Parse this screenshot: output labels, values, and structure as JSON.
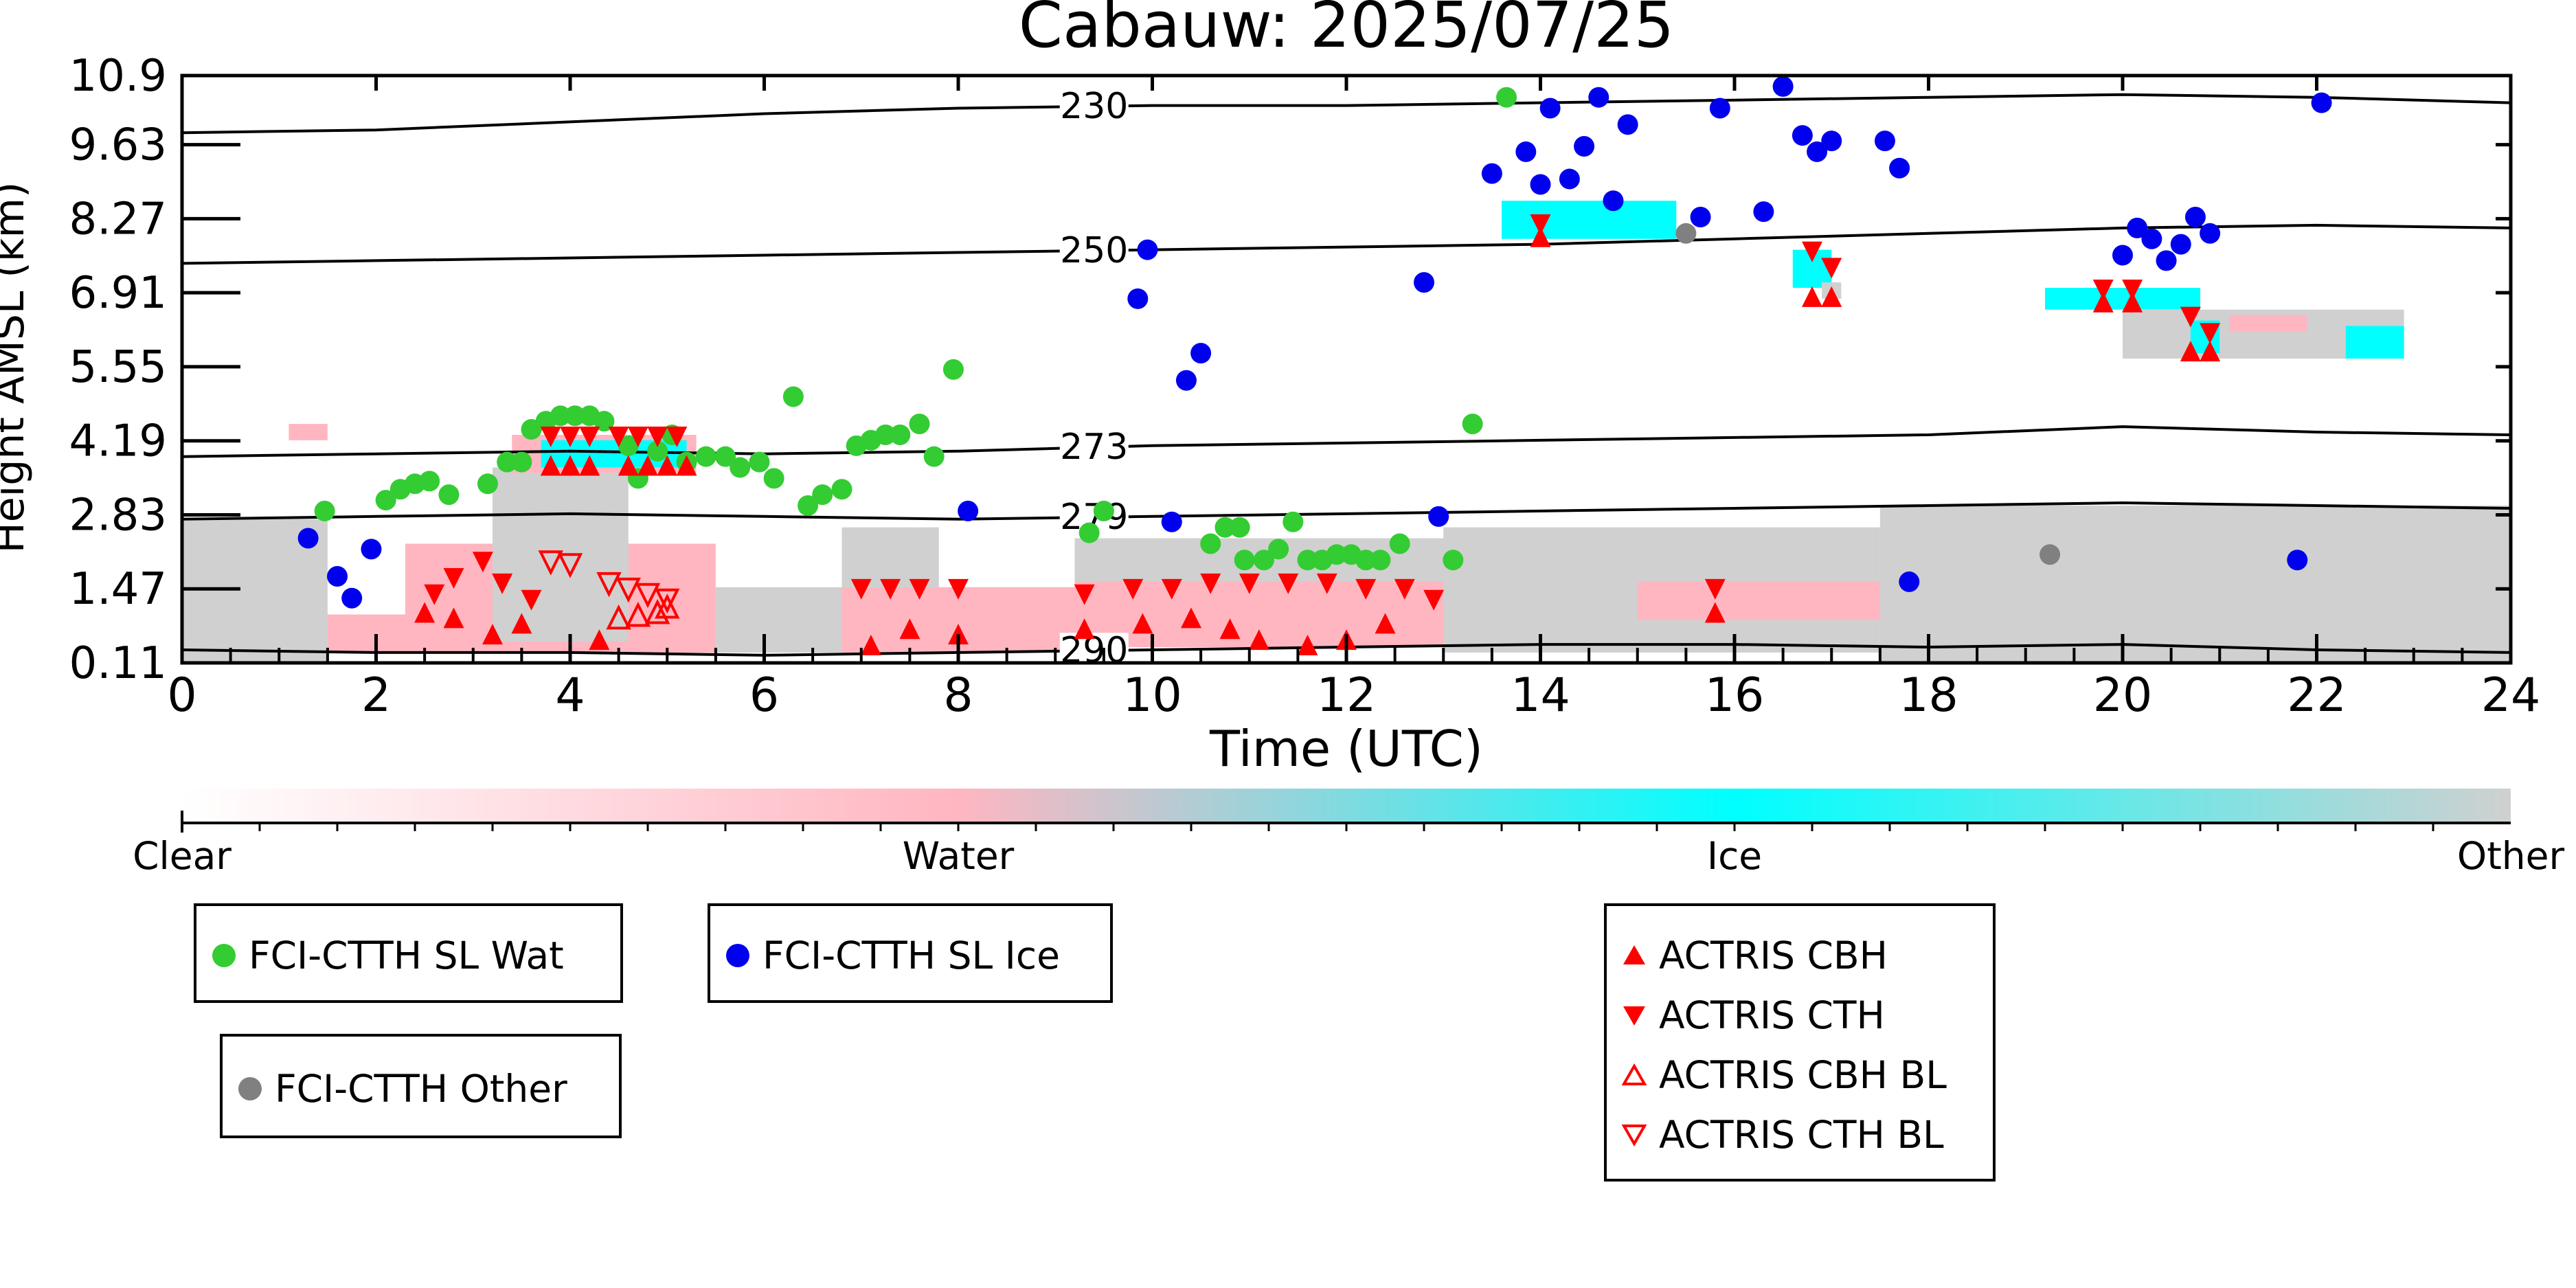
{
  "chart_data": {
    "type": "scatter",
    "title": "Cabauw: 2025/07/25",
    "xlabel": "Time (UTC)",
    "ylabel": "Height AMSL (km)",
    "xlim": [
      0,
      24
    ],
    "ylim": [
      0.11,
      10.9
    ],
    "xticks": [
      "0",
      "2",
      "4",
      "6",
      "8",
      "10",
      "12",
      "14",
      "16",
      "18",
      "20",
      "22",
      "24"
    ],
    "yticks": [
      "0.11",
      "1.47",
      "2.83",
      "4.19",
      "5.55",
      "6.91",
      "8.27",
      "9.63",
      "10.9"
    ],
    "ytick_values": [
      0.11,
      1.47,
      2.83,
      4.19,
      5.55,
      6.91,
      8.27,
      9.63,
      10.9
    ],
    "contours": [
      {
        "label": "230",
        "label_x": 9.4,
        "points": [
          [
            0,
            9.85
          ],
          [
            2,
            9.9
          ],
          [
            4,
            10.05
          ],
          [
            6,
            10.2
          ],
          [
            8,
            10.3
          ],
          [
            10,
            10.35
          ],
          [
            12,
            10.35
          ],
          [
            14,
            10.4
          ],
          [
            16,
            10.45
          ],
          [
            18,
            10.5
          ],
          [
            20,
            10.55
          ],
          [
            22,
            10.5
          ],
          [
            24,
            10.4
          ]
        ]
      },
      {
        "label": "250",
        "label_x": 9.4,
        "points": [
          [
            0,
            7.45
          ],
          [
            2,
            7.5
          ],
          [
            4,
            7.55
          ],
          [
            6,
            7.6
          ],
          [
            8,
            7.65
          ],
          [
            10,
            7.7
          ],
          [
            12,
            7.75
          ],
          [
            14,
            7.8
          ],
          [
            16,
            7.9
          ],
          [
            18,
            8.0
          ],
          [
            20,
            8.1
          ],
          [
            22,
            8.15
          ],
          [
            24,
            8.1
          ]
        ]
      },
      {
        "label": "273",
        "label_x": 9.4,
        "points": [
          [
            0,
            3.9
          ],
          [
            2,
            3.95
          ],
          [
            4,
            4.0
          ],
          [
            6,
            3.95
          ],
          [
            8,
            4.0
          ],
          [
            10,
            4.1
          ],
          [
            12,
            4.15
          ],
          [
            14,
            4.2
          ],
          [
            16,
            4.25
          ],
          [
            18,
            4.3
          ],
          [
            20,
            4.45
          ],
          [
            22,
            4.35
          ],
          [
            24,
            4.3
          ]
        ]
      },
      {
        "label": "279",
        "label_x": 9.4,
        "points": [
          [
            0,
            2.75
          ],
          [
            2,
            2.8
          ],
          [
            4,
            2.85
          ],
          [
            6,
            2.8
          ],
          [
            8,
            2.75
          ],
          [
            10,
            2.8
          ],
          [
            12,
            2.85
          ],
          [
            14,
            2.9
          ],
          [
            16,
            2.95
          ],
          [
            18,
            3.0
          ],
          [
            20,
            3.05
          ],
          [
            22,
            3.0
          ],
          [
            24,
            2.95
          ]
        ]
      },
      {
        "label": "290",
        "label_x": 9.4,
        "points": [
          [
            0,
            0.35
          ],
          [
            2,
            0.3
          ],
          [
            4,
            0.3
          ],
          [
            6,
            0.25
          ],
          [
            8,
            0.3
          ],
          [
            10,
            0.35
          ],
          [
            12,
            0.4
          ],
          [
            14,
            0.45
          ],
          [
            16,
            0.45
          ],
          [
            18,
            0.4
          ],
          [
            20,
            0.45
          ],
          [
            22,
            0.35
          ],
          [
            24,
            0.3
          ]
        ]
      }
    ],
    "classification": {
      "colors": {
        "Water": "#ffb6c1",
        "Ice": "#00ffff",
        "Other": "#d0d0d0"
      },
      "regions": [
        {
          "class": "Other",
          "x0": 0,
          "x1": 1.5,
          "y0": 0.11,
          "y1": 2.75
        },
        {
          "class": "Water",
          "x0": 1.5,
          "x1": 2.5,
          "y0": 0.3,
          "y1": 1.0
        },
        {
          "class": "Water",
          "x0": 2.3,
          "x1": 5.5,
          "y0": 0.3,
          "y1": 2.3
        },
        {
          "class": "Other",
          "x0": 3.2,
          "x1": 4.6,
          "y0": 0.5,
          "y1": 3.7
        },
        {
          "class": "Other",
          "x0": 5.5,
          "x1": 9.2,
          "y0": 0.3,
          "y1": 1.5
        },
        {
          "class": "Water",
          "x0": 6.8,
          "x1": 9.2,
          "y0": 0.3,
          "y1": 1.5
        },
        {
          "class": "Other",
          "x0": 6.8,
          "x1": 7.8,
          "y0": 1.5,
          "y1": 2.6
        },
        {
          "class": "Other",
          "x0": 9.2,
          "x1": 14.0,
          "y0": 0.5,
          "y1": 2.4
        },
        {
          "class": "Water",
          "x0": 9.2,
          "x1": 13.0,
          "y0": 0.4,
          "y1": 1.6
        },
        {
          "class": "Other",
          "x0": 13.0,
          "x1": 17.5,
          "y0": 0.3,
          "y1": 2.6
        },
        {
          "class": "Water",
          "x0": 15.0,
          "x1": 17.5,
          "y0": 0.9,
          "y1": 1.6
        },
        {
          "class": "Other",
          "x0": 17.5,
          "x1": 24,
          "y0": 0.11,
          "y1": 3.0
        },
        {
          "class": "Water",
          "x0": 3.4,
          "x1": 5.3,
          "y0": 3.6,
          "y1": 4.3
        },
        {
          "class": "Ice",
          "x0": 3.7,
          "x1": 5.2,
          "y0": 3.7,
          "y1": 4.2
        },
        {
          "class": "Water",
          "x0": 1.1,
          "x1": 1.5,
          "y0": 4.2,
          "y1": 4.5
        },
        {
          "class": "Ice",
          "x0": 13.6,
          "x1": 15.4,
          "y0": 7.9,
          "y1": 8.6
        },
        {
          "class": "Ice",
          "x0": 16.6,
          "x1": 17.0,
          "y0": 7.0,
          "y1": 7.7
        },
        {
          "class": "Other",
          "x0": 16.9,
          "x1": 17.1,
          "y0": 6.8,
          "y1": 7.1
        },
        {
          "class": "Ice",
          "x0": 19.2,
          "x1": 20.8,
          "y0": 6.6,
          "y1": 7.0
        },
        {
          "class": "Other",
          "x0": 20.0,
          "x1": 22.9,
          "y0": 5.7,
          "y1": 6.6
        },
        {
          "class": "Water",
          "x0": 21.1,
          "x1": 21.9,
          "y0": 6.2,
          "y1": 6.5
        },
        {
          "class": "Ice",
          "x0": 20.7,
          "x1": 21.0,
          "y0": 5.8,
          "y1": 6.4
        },
        {
          "class": "Ice",
          "x0": 22.3,
          "x1": 22.9,
          "y0": 5.7,
          "y1": 6.3
        }
      ]
    },
    "colorbar": {
      "labels": [
        "Clear",
        "Water",
        "Ice",
        "Other"
      ],
      "colors": [
        "#ffffff",
        "#ffb6c1",
        "#00ffff",
        "#d0d0d0"
      ]
    },
    "series": [
      {
        "name": "FCI-CTTH SL Wat",
        "marker": "circle",
        "color": "#33cc33",
        "points": [
          [
            1.47,
            2.9
          ],
          [
            2.1,
            3.1
          ],
          [
            2.25,
            3.3
          ],
          [
            2.4,
            3.4
          ],
          [
            2.55,
            3.45
          ],
          [
            2.75,
            3.2
          ],
          [
            3.15,
            3.4
          ],
          [
            3.35,
            3.8
          ],
          [
            3.5,
            3.8
          ],
          [
            3.6,
            4.4
          ],
          [
            3.75,
            4.55
          ],
          [
            3.9,
            4.65
          ],
          [
            4.05,
            4.65
          ],
          [
            4.2,
            4.65
          ],
          [
            4.35,
            4.55
          ],
          [
            4.6,
            4.1
          ],
          [
            4.7,
            3.5
          ],
          [
            4.9,
            4.0
          ],
          [
            5.05,
            4.3
          ],
          [
            5.2,
            3.8
          ],
          [
            5.4,
            3.9
          ],
          [
            5.6,
            3.9
          ],
          [
            5.75,
            3.7
          ],
          [
            5.95,
            3.8
          ],
          [
            6.1,
            3.5
          ],
          [
            6.3,
            5.0
          ],
          [
            6.45,
            3.0
          ],
          [
            6.6,
            3.2
          ],
          [
            6.8,
            3.3
          ],
          [
            6.95,
            4.1
          ],
          [
            7.1,
            4.2
          ],
          [
            7.25,
            4.3
          ],
          [
            7.4,
            4.3
          ],
          [
            7.6,
            4.5
          ],
          [
            7.75,
            3.9
          ],
          [
            7.95,
            5.5
          ],
          [
            9.35,
            2.5
          ],
          [
            9.5,
            2.9
          ],
          [
            10.6,
            2.3
          ],
          [
            10.75,
            2.6
          ],
          [
            10.9,
            2.6
          ],
          [
            10.95,
            2.0
          ],
          [
            11.15,
            2.0
          ],
          [
            11.3,
            2.2
          ],
          [
            11.45,
            2.7
          ],
          [
            11.6,
            2.0
          ],
          [
            11.75,
            2.0
          ],
          [
            11.9,
            2.1
          ],
          [
            12.05,
            2.1
          ],
          [
            12.2,
            2.0
          ],
          [
            12.35,
            2.0
          ],
          [
            12.55,
            2.3
          ],
          [
            13.1,
            2.0
          ],
          [
            13.3,
            4.5
          ],
          [
            13.65,
            10.5
          ]
        ]
      },
      {
        "name": "FCI-CTTH SL Ice",
        "marker": "circle",
        "color": "#0000ee",
        "points": [
          [
            1.3,
            2.4
          ],
          [
            1.6,
            1.7
          ],
          [
            1.75,
            1.3
          ],
          [
            1.95,
            2.2
          ],
          [
            8.1,
            2.9
          ],
          [
            9.85,
            6.8
          ],
          [
            9.95,
            7.7
          ],
          [
            10.2,
            2.7
          ],
          [
            10.35,
            5.3
          ],
          [
            10.5,
            5.8
          ],
          [
            12.8,
            7.1
          ],
          [
            12.95,
            2.8
          ],
          [
            13.5,
            9.1
          ],
          [
            13.85,
            9.5
          ],
          [
            14.0,
            8.9
          ],
          [
            14.1,
            10.3
          ],
          [
            14.3,
            9.0
          ],
          [
            14.45,
            9.6
          ],
          [
            14.6,
            10.5
          ],
          [
            14.75,
            8.6
          ],
          [
            14.9,
            10.0
          ],
          [
            15.65,
            8.3
          ],
          [
            15.85,
            10.3
          ],
          [
            16.3,
            8.4
          ],
          [
            16.5,
            10.7
          ],
          [
            16.7,
            9.8
          ],
          [
            16.85,
            9.5
          ],
          [
            17.0,
            9.7
          ],
          [
            17.55,
            9.7
          ],
          [
            17.7,
            9.2
          ],
          [
            17.8,
            1.6
          ],
          [
            20.0,
            7.6
          ],
          [
            20.15,
            8.1
          ],
          [
            20.3,
            7.9
          ],
          [
            20.45,
            7.5
          ],
          [
            20.6,
            7.8
          ],
          [
            20.75,
            8.3
          ],
          [
            20.9,
            8.0
          ],
          [
            21.8,
            2.0
          ],
          [
            22.05,
            10.4
          ]
        ]
      },
      {
        "name": "FCI-CTTH Other",
        "marker": "circle",
        "color": "#808080",
        "points": [
          [
            15.5,
            8.0
          ],
          [
            19.25,
            2.1
          ]
        ]
      },
      {
        "name": "ACTRIS CBH",
        "marker": "triangle-up",
        "color": "#ff0000",
        "filled": true,
        "points": [
          [
            2.5,
            1.0
          ],
          [
            2.8,
            0.9
          ],
          [
            3.2,
            0.6
          ],
          [
            3.5,
            0.8
          ],
          [
            3.8,
            3.7
          ],
          [
            4.0,
            3.7
          ],
          [
            4.2,
            3.7
          ],
          [
            4.3,
            0.5
          ],
          [
            4.6,
            3.7
          ],
          [
            4.8,
            3.7
          ],
          [
            5.0,
            3.7
          ],
          [
            5.2,
            3.7
          ],
          [
            7.1,
            0.4
          ],
          [
            7.5,
            0.7
          ],
          [
            8.0,
            0.6
          ],
          [
            9.3,
            0.7
          ],
          [
            9.9,
            0.8
          ],
          [
            10.4,
            0.9
          ],
          [
            10.8,
            0.7
          ],
          [
            11.1,
            0.5
          ],
          [
            11.6,
            0.4
          ],
          [
            12.0,
            0.5
          ],
          [
            12.4,
            0.8
          ],
          [
            14.0,
            7.9
          ],
          [
            15.8,
            1.0
          ],
          [
            16.8,
            6.8
          ],
          [
            17.0,
            6.8
          ],
          [
            19.8,
            6.7
          ],
          [
            20.1,
            6.7
          ],
          [
            20.7,
            5.8
          ],
          [
            20.9,
            5.8
          ]
        ]
      },
      {
        "name": "ACTRIS CTH",
        "marker": "triangle-down",
        "color": "#ff0000",
        "filled": true,
        "points": [
          [
            2.6,
            1.4
          ],
          [
            2.8,
            1.7
          ],
          [
            3.1,
            2.0
          ],
          [
            3.3,
            1.6
          ],
          [
            3.6,
            1.3
          ],
          [
            3.8,
            4.3
          ],
          [
            4.0,
            4.3
          ],
          [
            4.2,
            4.3
          ],
          [
            4.5,
            4.3
          ],
          [
            4.7,
            4.3
          ],
          [
            4.9,
            4.3
          ],
          [
            5.1,
            4.3
          ],
          [
            7.0,
            1.5
          ],
          [
            7.3,
            1.5
          ],
          [
            7.6,
            1.5
          ],
          [
            8.0,
            1.5
          ],
          [
            9.3,
            1.4
          ],
          [
            9.8,
            1.5
          ],
          [
            10.2,
            1.5
          ],
          [
            10.6,
            1.6
          ],
          [
            11.0,
            1.6
          ],
          [
            11.4,
            1.6
          ],
          [
            11.8,
            1.6
          ],
          [
            12.2,
            1.5
          ],
          [
            12.6,
            1.5
          ],
          [
            12.9,
            1.3
          ],
          [
            14.0,
            8.2
          ],
          [
            15.8,
            1.5
          ],
          [
            16.8,
            7.7
          ],
          [
            17.0,
            7.4
          ],
          [
            19.8,
            7.0
          ],
          [
            20.1,
            7.0
          ],
          [
            20.7,
            6.5
          ],
          [
            20.9,
            6.2
          ]
        ]
      },
      {
        "name": "ACTRIS CBH BL",
        "marker": "triangle-up",
        "color": "#ff0000",
        "filled": false,
        "points": [
          [
            4.5,
            0.9
          ],
          [
            4.7,
            0.95
          ],
          [
            4.9,
            1.0
          ],
          [
            5.0,
            1.1
          ]
        ]
      },
      {
        "name": "ACTRIS CTH BL",
        "marker": "triangle-down",
        "color": "#ff0000",
        "filled": false,
        "points": [
          [
            3.8,
            2.0
          ],
          [
            4.0,
            1.95
          ],
          [
            4.4,
            1.6
          ],
          [
            4.6,
            1.5
          ],
          [
            4.8,
            1.4
          ],
          [
            5.0,
            1.3
          ]
        ]
      }
    ],
    "legends": [
      {
        "entries": [
          "FCI-CTTH SL Wat"
        ]
      },
      {
        "entries": [
          "FCI-CTTH SL Ice"
        ]
      },
      {
        "entries": [
          "FCI-CTTH Other"
        ]
      },
      {
        "entries": [
          "ACTRIS CBH",
          "ACTRIS CTH",
          "ACTRIS CBH BL",
          "ACTRIS CTH BL"
        ]
      }
    ]
  }
}
